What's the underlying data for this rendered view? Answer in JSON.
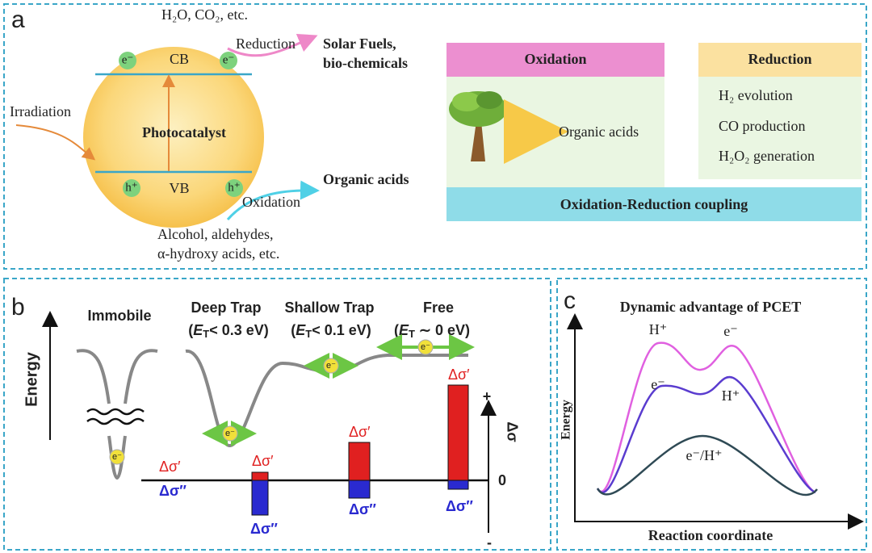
{
  "panel_a": {
    "label": "a",
    "inputs_top": "H₂O, CO₂, etc.",
    "reduction": "Reduction",
    "product_top": [
      "Solar Fuels,",
      "bio-chemicals"
    ],
    "irradiation": "Irradiation",
    "cb": "CB",
    "vb": "VB",
    "photocatalyst": "Photocatalyst",
    "electrons": [
      "e⁻",
      "e⁻"
    ],
    "holes": [
      "h⁺",
      "h⁺"
    ],
    "oxidation": "Oxidation",
    "product_bottom": "Organic acids",
    "inputs_bottom": [
      "Alcohol, aldehydes,",
      "α-hydroxy acids, etc."
    ],
    "table": {
      "oxidation_header": "Oxidation",
      "oxidation_item": "Organic acids",
      "reduction_header": "Reduction",
      "reduction_items": [
        "H₂ evolution",
        "CO production",
        "H₂O₂ generation"
      ],
      "footer": "Oxidation-Reduction coupling"
    }
  },
  "panel_b": {
    "label": "b",
    "energy": "Energy",
    "states": [
      {
        "name": "Immobile"
      },
      {
        "name": "Deep Trap",
        "energy": [
          "(",
          "E",
          "T",
          "< 0.3 eV)"
        ]
      },
      {
        "name": "Shallow Trap",
        "energy": [
          "(",
          "E",
          "T",
          "< 0.1 eV)"
        ]
      },
      {
        "name": "Free",
        "energy": [
          "(",
          "E",
          "T",
          " ∼ 0 eV)"
        ]
      }
    ],
    "electron": "e⁻",
    "real_label": "Δσ′",
    "imag_label": "Δσ″",
    "axis_label": "Δσ",
    "plus": "+",
    "zero": "0",
    "minus": "-"
  },
  "panel_c": {
    "label": "c",
    "title": "Dynamic advantage of PCET",
    "y_label": "Energy",
    "x_label": "Reaction coordinate",
    "peaks": [
      "H⁺",
      "e⁻",
      "e⁻",
      "H⁺",
      "e⁻/H⁺"
    ]
  }
}
